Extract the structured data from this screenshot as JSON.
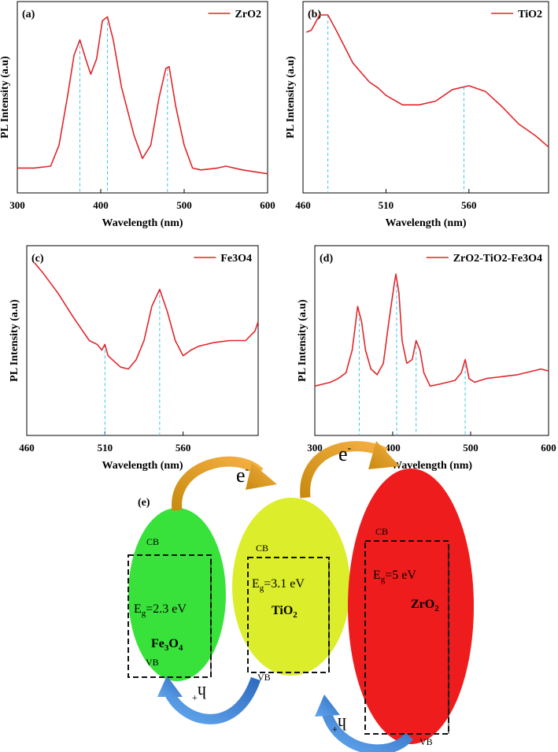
{
  "chart_data": [
    {
      "type": "line",
      "panel_label": "(a)",
      "xlabel": "Wavelength (nm)",
      "ylabel": "PL Intensity (a.u)",
      "x": [
        300,
        320,
        340,
        350,
        360,
        368,
        375,
        382,
        388,
        395,
        402,
        408,
        415,
        425,
        440,
        450,
        460,
        470,
        478,
        482,
        490,
        500,
        510,
        520,
        540,
        550,
        570,
        600
      ],
      "series": [
        {
          "name": "ZrO2",
          "color": "#e0262b",
          "values": [
            13,
            13,
            14,
            25,
            50,
            72,
            80,
            70,
            62,
            70,
            90,
            92,
            80,
            55,
            30,
            18,
            25,
            50,
            65,
            66,
            45,
            25,
            13,
            12,
            13,
            14,
            12,
            10
          ]
        }
      ],
      "peak_lines": {
        "color": "#3cc8e6",
        "x": [
          375,
          408,
          480
        ]
      },
      "xlim": [
        300,
        600
      ],
      "ylim": [
        0,
        100
      ],
      "xticks": [
        300,
        400,
        500,
        600
      ],
      "legend": "upper right"
    },
    {
      "type": "line",
      "panel_label": "(b)",
      "xlabel": "Wavelength (nm)",
      "ylabel": "PL Intensity (a.u)",
      "x": [
        462,
        465,
        470,
        475,
        480,
        490,
        500,
        505,
        510,
        520,
        530,
        540,
        550,
        560,
        570,
        580,
        590,
        600,
        608
      ],
      "series": [
        {
          "name": "TiO2",
          "color": "#e0262b",
          "values": [
            84,
            85,
            93,
            93,
            85,
            68,
            58,
            55,
            51,
            46,
            46,
            48,
            54,
            56,
            53,
            45,
            36,
            30,
            24
          ]
        }
      ],
      "peak_lines": {
        "color": "#3cc8e6",
        "x": [
          475,
          557
        ]
      },
      "xlim": [
        460,
        608
      ],
      "ylim": [
        0,
        100
      ],
      "xticks": [
        460,
        510,
        560
      ],
      "legend": "upper right"
    },
    {
      "type": "line",
      "panel_label": "(c)",
      "xlabel": "Wavelength (nm)",
      "ylabel": "PL Intensity (a.u)",
      "x": [
        465,
        470,
        480,
        490,
        500,
        505,
        508,
        510,
        512,
        520,
        525,
        530,
        535,
        540,
        545,
        550,
        555,
        560,
        565,
        570,
        580,
        590,
        600,
        606,
        608
      ],
      "series": [
        {
          "name": "Fe3O4",
          "color": "#e0262b",
          "values": [
            91,
            86,
            75,
            62,
            50,
            48,
            45,
            48,
            42,
            36,
            35,
            40,
            50,
            68,
            77,
            65,
            50,
            42,
            45,
            47,
            49,
            50,
            50,
            55,
            60
          ]
        }
      ],
      "peak_lines": {
        "color": "#3cc8e6",
        "x": [
          510,
          545
        ]
      },
      "xlim": [
        460,
        608
      ],
      "ylim": [
        0,
        100
      ],
      "xticks": [
        460,
        510,
        560
      ],
      "legend": "upper right"
    },
    {
      "type": "line",
      "panel_label": "(d)",
      "xlabel": "Wavelength (nm)",
      "ylabel": "PL Intensity (a.u)",
      "x": [
        300,
        310,
        320,
        330,
        340,
        348,
        352,
        355,
        360,
        365,
        372,
        380,
        388,
        395,
        402,
        404,
        408,
        412,
        418,
        425,
        430,
        435,
        440,
        448,
        460,
        470,
        480,
        488,
        493,
        498,
        505,
        520,
        540,
        560,
        580,
        590,
        600
      ],
      "series": [
        {
          "name": "ZrO2-TiO2-Fe3O4",
          "color": "#e0262b",
          "values": [
            26,
            27,
            28,
            30,
            33,
            45,
            58,
            68,
            60,
            45,
            35,
            32,
            38,
            60,
            80,
            85,
            75,
            50,
            38,
            40,
            50,
            45,
            33,
            26,
            27,
            28,
            29,
            33,
            40,
            30,
            28,
            30,
            31,
            32,
            34,
            35,
            34
          ]
        }
      ],
      "peak_lines": {
        "color": "#3cc8e6",
        "x": [
          357,
          405,
          430,
          493
        ]
      },
      "xlim": [
        300,
        600
      ],
      "ylim": [
        0,
        100
      ],
      "xticks": [
        300,
        400,
        500,
        600
      ],
      "legend": "upper right"
    }
  ],
  "diagram": {
    "panel_label": "(e)",
    "electron": [
      "e",
      "-"
    ],
    "hole": [
      "h",
      "+"
    ],
    "nodes": [
      {
        "name": "Fe3O4",
        "color": "#39e23b",
        "cb": "CB",
        "vb": "VB",
        "eg": [
          "E",
          "g",
          "=2.3 eV"
        ]
      },
      {
        "name": "TiO2",
        "color": "#dced2c",
        "cb": "CB",
        "vb": "VB",
        "eg": [
          "E",
          "g",
          "=3.1 eV"
        ]
      },
      {
        "name": "ZrO2",
        "color": "#ee1c1c",
        "cb": "CB",
        "vb": "VB",
        "eg": [
          "E",
          "g",
          "=5 eV"
        ]
      }
    ]
  }
}
